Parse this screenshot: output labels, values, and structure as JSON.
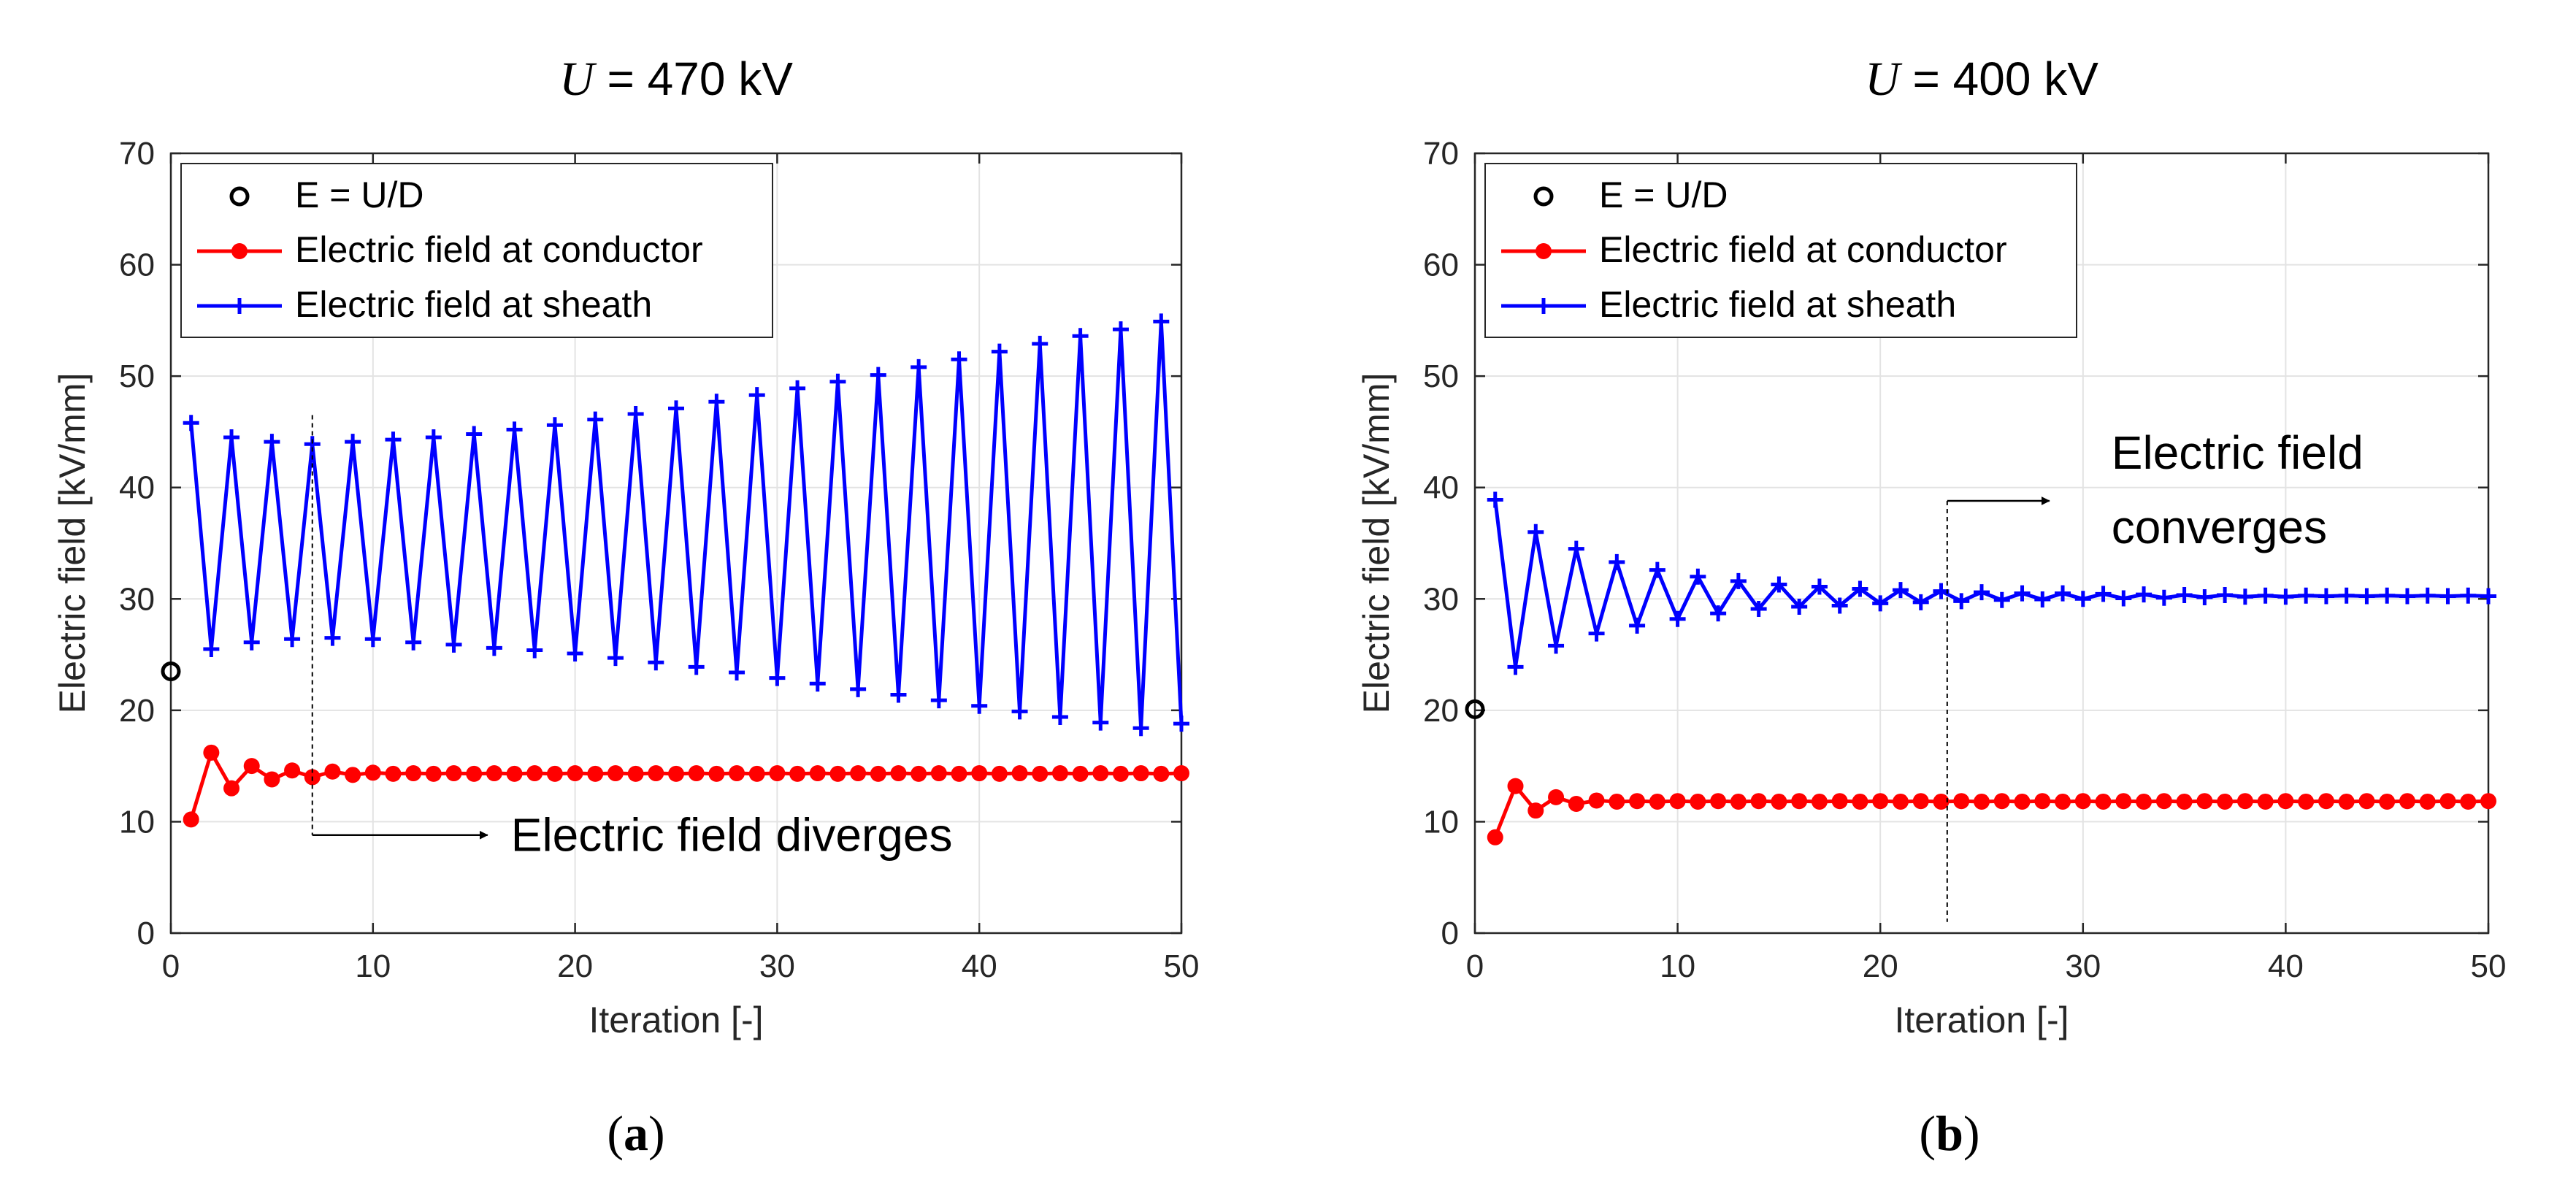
{
  "figure": {
    "panels": [
      "a",
      "b"
    ]
  },
  "chart_data": [
    {
      "type": "line",
      "title_var": "U",
      "title_rest": " = 470 kV",
      "caption_label": "a",
      "xlabel": "Iteration [-]",
      "ylabel": "Electric field [kV/mm]",
      "xlim": [
        0,
        50
      ],
      "ylim": [
        0,
        70
      ],
      "xticks": [
        0,
        10,
        20,
        30,
        40,
        50
      ],
      "yticks": [
        0,
        10,
        20,
        30,
        40,
        50,
        60,
        70
      ],
      "grid": true,
      "legend_position": "top-left",
      "legend": [
        "E = U/D",
        "Electric field at conductor",
        "Electric field at sheath"
      ],
      "colors": {
        "ud": "#000000",
        "conductor": "#ff0000",
        "sheath": "#0000ff"
      },
      "annotation": "Electric field diverges",
      "annotation_x": 7,
      "series": [
        {
          "name": "E = U/D",
          "marker": "circle",
          "x": [
            0
          ],
          "values": [
            23.5
          ]
        },
        {
          "name": "Electric field at conductor",
          "marker": "dot",
          "x_start": 1,
          "values": [
            10.2,
            16.2,
            13.0,
            15.0,
            13.8,
            14.6,
            14.0,
            14.5,
            14.2,
            14.4,
            14.3,
            14.35,
            14.3,
            14.35,
            14.3,
            14.35,
            14.3,
            14.35,
            14.3,
            14.35,
            14.3,
            14.35,
            14.3,
            14.35,
            14.3,
            14.35,
            14.3,
            14.35,
            14.3,
            14.35,
            14.3,
            14.35,
            14.3,
            14.35,
            14.3,
            14.35,
            14.3,
            14.35,
            14.3,
            14.35,
            14.3,
            14.35,
            14.3,
            14.35,
            14.3,
            14.35,
            14.3,
            14.35,
            14.3,
            14.35
          ]
        },
        {
          "name": "Electric field at sheath",
          "marker": "plus",
          "x_start": 1,
          "values": [
            45.8,
            25.5,
            44.5,
            26.1,
            44.1,
            26.4,
            43.9,
            26.5,
            44.1,
            26.4,
            44.3,
            26.1,
            44.5,
            25.9,
            44.8,
            25.6,
            45.2,
            25.4,
            45.6,
            25.1,
            46.1,
            24.7,
            46.6,
            24.3,
            47.1,
            23.9,
            47.7,
            23.4,
            48.3,
            22.9,
            48.9,
            22.4,
            49.5,
            21.9,
            50.1,
            21.4,
            50.8,
            20.9,
            51.5,
            20.4,
            52.2,
            19.9,
            52.9,
            19.4,
            53.6,
            18.9,
            54.2,
            18.4,
            54.9,
            18.8
          ]
        }
      ]
    },
    {
      "type": "line",
      "title_var": "U",
      "title_rest": " = 400 kV",
      "caption_label": "b",
      "xlabel": "Iteration [-]",
      "ylabel": "Electric field [kV/mm]",
      "xlim": [
        0,
        50
      ],
      "ylim": [
        0,
        70
      ],
      "xticks": [
        0,
        10,
        20,
        30,
        40,
        50
      ],
      "yticks": [
        0,
        10,
        20,
        30,
        40,
        50,
        60,
        70
      ],
      "grid": true,
      "legend_position": "top-left",
      "legend": [
        "E = U/D",
        "Electric field at conductor",
        "Electric field at sheath"
      ],
      "colors": {
        "ud": "#000000",
        "conductor": "#ff0000",
        "sheath": "#0000ff"
      },
      "annotation_line1": "Electric field",
      "annotation_line2": "converges",
      "annotation_x": 23.3,
      "series": [
        {
          "name": "E = U/D",
          "marker": "circle",
          "x": [
            0
          ],
          "values": [
            20.1
          ]
        },
        {
          "name": "Electric field at conductor",
          "marker": "dot",
          "x_start": 1,
          "values": [
            8.6,
            13.2,
            11.0,
            12.2,
            11.6,
            11.9,
            11.8,
            11.85,
            11.8,
            11.85,
            11.8,
            11.85,
            11.8,
            11.85,
            11.8,
            11.85,
            11.8,
            11.85,
            11.8,
            11.85,
            11.8,
            11.85,
            11.8,
            11.85,
            11.8,
            11.85,
            11.8,
            11.85,
            11.8,
            11.85,
            11.8,
            11.85,
            11.8,
            11.85,
            11.8,
            11.85,
            11.8,
            11.85,
            11.8,
            11.85,
            11.8,
            11.85,
            11.8,
            11.85,
            11.8,
            11.85,
            11.8,
            11.85,
            11.8,
            11.85
          ]
        },
        {
          "name": "Electric field at sheath",
          "marker": "plus",
          "x_start": 1,
          "values": [
            38.9,
            23.9,
            36.0,
            25.8,
            34.5,
            26.9,
            33.3,
            27.6,
            32.6,
            28.2,
            32.0,
            28.7,
            31.6,
            29.1,
            31.3,
            29.3,
            31.1,
            29.4,
            30.9,
            29.6,
            30.8,
            29.7,
            30.7,
            29.8,
            30.6,
            29.9,
            30.5,
            29.95,
            30.5,
            30.0,
            30.45,
            30.05,
            30.4,
            30.1,
            30.35,
            30.15,
            30.35,
            30.2,
            30.3,
            30.2,
            30.3,
            30.25,
            30.3,
            30.25,
            30.3,
            30.25,
            30.3,
            30.25,
            30.3,
            30.25
          ]
        }
      ]
    }
  ]
}
